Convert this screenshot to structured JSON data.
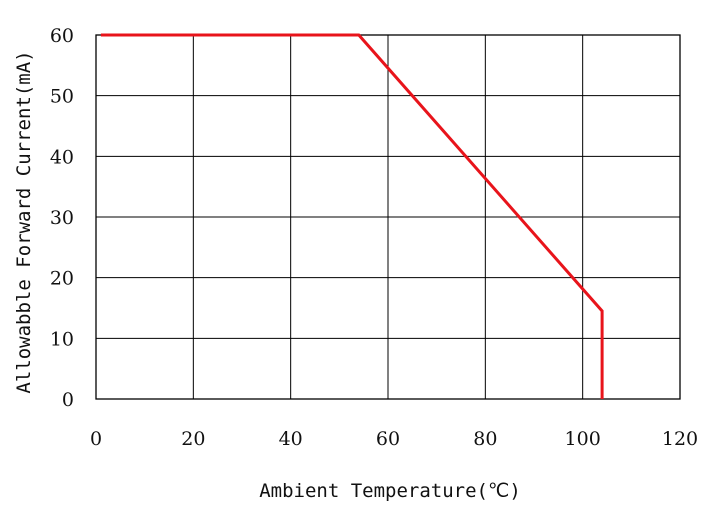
{
  "chart_data": {
    "type": "line",
    "title": "",
    "xlabel": "Ambient Temperature(℃)",
    "ylabel": "Allowabble Forward Current(mA)",
    "xlim": [
      0,
      120
    ],
    "ylim": [
      0,
      60
    ],
    "x_ticks": [
      "0",
      "20",
      "40",
      "60",
      "80",
      "100",
      "120"
    ],
    "y_ticks": [
      "0",
      "10",
      "20",
      "30",
      "40",
      "50",
      "60"
    ],
    "grid": true,
    "legend": "none",
    "series": [
      {
        "color": "#e8141b",
        "points": [
          [
            1,
            60
          ],
          [
            54,
            60
          ],
          [
            104,
            14.5
          ],
          [
            104,
            0
          ]
        ]
      }
    ]
  }
}
